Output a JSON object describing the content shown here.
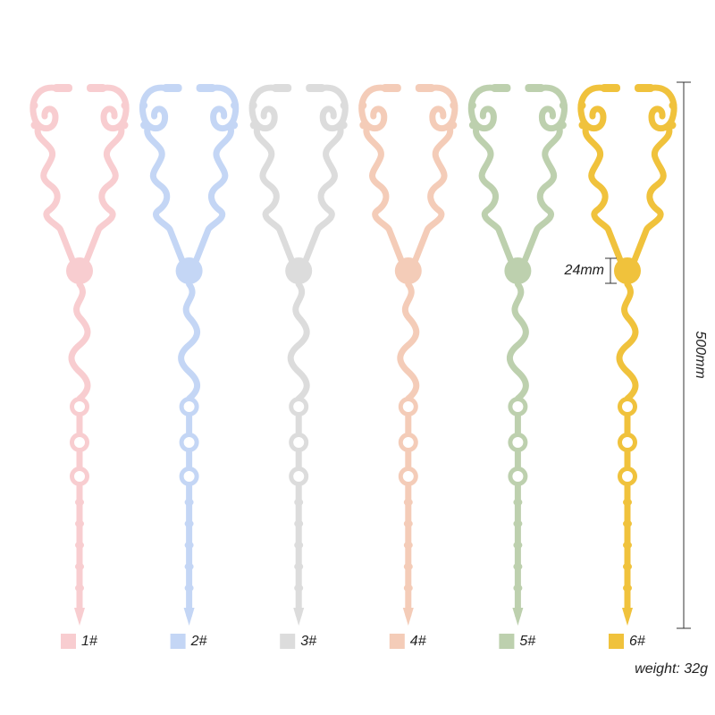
{
  "variants": [
    {
      "label": "1#",
      "color": "#f8cdd0"
    },
    {
      "label": "2#",
      "color": "#c4d6f5"
    },
    {
      "label": "3#",
      "color": "#dcdcdc"
    },
    {
      "label": "4#",
      "color": "#f4ccb8"
    },
    {
      "label": "5#",
      "color": "#bdd0ae"
    },
    {
      "label": "6#",
      "color": "#f0c23c"
    }
  ],
  "dimensions": {
    "disc": "24mm",
    "length": "500mm"
  },
  "weight": "weight: 32g"
}
